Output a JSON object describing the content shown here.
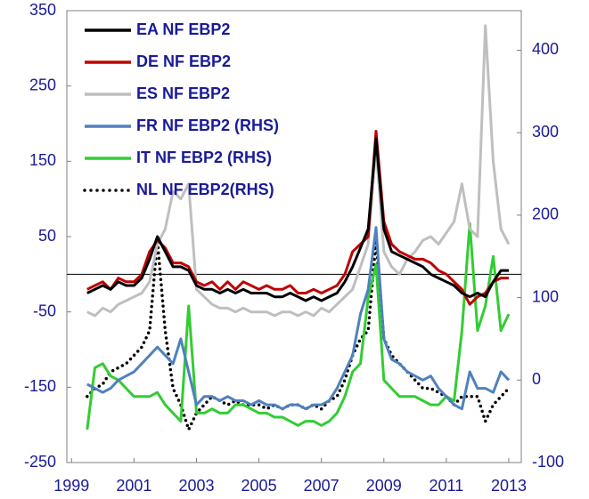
{
  "chart_data": {
    "type": "line",
    "x": [
      1999.5,
      1999.75,
      2000,
      2000.25,
      2000.5,
      2000.75,
      2001,
      2001.25,
      2001.5,
      2001.75,
      2002,
      2002.25,
      2002.5,
      2002.75,
      2003,
      2003.25,
      2003.5,
      2003.75,
      2004,
      2004.25,
      2004.5,
      2004.75,
      2005,
      2005.25,
      2005.5,
      2005.75,
      2006,
      2006.25,
      2006.5,
      2006.75,
      2007,
      2007.25,
      2007.5,
      2007.75,
      2008,
      2008.25,
      2008.5,
      2008.75,
      2009,
      2009.25,
      2009.5,
      2009.75,
      2010,
      2010.25,
      2010.5,
      2010.75,
      2011,
      2011.25,
      2011.5,
      2011.75,
      2012,
      2012.25,
      2012.5,
      2012.75,
      2013
    ],
    "series": [
      {
        "name": "EA NF EBP2",
        "color": "#000000",
        "style": "solid",
        "values": [
          -25,
          -20,
          -15,
          -20,
          -10,
          -15,
          -15,
          -5,
          20,
          50,
          30,
          10,
          10,
          5,
          -15,
          -20,
          -20,
          -25,
          -20,
          -25,
          -20,
          -25,
          -25,
          -25,
          -30,
          -30,
          -25,
          -30,
          -35,
          -30,
          -35,
          -30,
          -25,
          -10,
          10,
          35,
          60,
          180,
          60,
          30,
          25,
          20,
          15,
          10,
          0,
          -5,
          -10,
          -15,
          -25,
          -30,
          -25,
          -30,
          -10,
          5,
          5
        ]
      },
      {
        "name": "DE NF EBP2",
        "color": "#c00000",
        "style": "solid",
        "values": [
          -20,
          -15,
          -10,
          -20,
          -5,
          -10,
          -10,
          0,
          30,
          45,
          35,
          15,
          15,
          10,
          -10,
          -15,
          -10,
          -20,
          -10,
          -20,
          -10,
          -15,
          -20,
          -15,
          -20,
          -20,
          -15,
          -25,
          -25,
          -20,
          -25,
          -20,
          -15,
          0,
          30,
          40,
          50,
          190,
          70,
          40,
          30,
          25,
          20,
          20,
          15,
          5,
          0,
          -10,
          -20,
          -40,
          -30,
          -25,
          -10,
          -5,
          -5
        ]
      },
      {
        "name": "ES NF EBP2",
        "color": "#bfbfbf",
        "style": "solid",
        "values": [
          -50,
          -55,
          -45,
          -50,
          -40,
          -35,
          -30,
          -25,
          -10,
          40,
          60,
          110,
          100,
          120,
          -20,
          -30,
          -40,
          -45,
          -45,
          -50,
          -45,
          -50,
          -50,
          -50,
          -55,
          -50,
          -50,
          -55,
          -50,
          -55,
          -45,
          -50,
          -40,
          -30,
          -20,
          10,
          40,
          170,
          30,
          10,
          0,
          20,
          30,
          45,
          50,
          40,
          55,
          70,
          120,
          60,
          50,
          330,
          150,
          60,
          40
        ]
      },
      {
        "name": "FR NF EBP2 (RHS)",
        "color": "#4f81bd",
        "style": "solid",
        "axis": "y2",
        "values": [
          -5,
          -10,
          -15,
          -10,
          0,
          5,
          10,
          20,
          30,
          40,
          30,
          20,
          50,
          10,
          -30,
          -20,
          -20,
          -25,
          -20,
          -25,
          -25,
          -30,
          -25,
          -30,
          -30,
          -35,
          -30,
          -30,
          -35,
          -30,
          -30,
          -25,
          -10,
          10,
          30,
          80,
          110,
          185,
          50,
          25,
          20,
          10,
          5,
          0,
          5,
          -10,
          -20,
          -30,
          -35,
          10,
          -10,
          -10,
          -15,
          10,
          0
        ]
      },
      {
        "name": "IT NF EBP2 (RHS)",
        "color": "#33cc33",
        "style": "solid",
        "axis": "y2",
        "values": [
          -60,
          15,
          20,
          5,
          0,
          -10,
          -20,
          -20,
          -20,
          -15,
          -30,
          -40,
          -50,
          90,
          -40,
          -40,
          -35,
          -40,
          -40,
          -30,
          -30,
          -35,
          -40,
          -40,
          -45,
          -45,
          -50,
          -55,
          -50,
          -50,
          -55,
          -50,
          -40,
          -20,
          10,
          20,
          100,
          140,
          0,
          -10,
          -20,
          -20,
          -20,
          -25,
          -30,
          -30,
          -20,
          -25,
          60,
          190,
          60,
          90,
          150,
          60,
          80
        ]
      },
      {
        "name": "NL NF EBP2(RHS)",
        "color": "#000000",
        "style": "dotted",
        "axis": "y2",
        "values": [
          -20,
          -10,
          -5,
          10,
          15,
          20,
          30,
          40,
          60,
          170,
          60,
          -10,
          -30,
          -60,
          -40,
          -30,
          -20,
          -25,
          -30,
          -25,
          -30,
          -30,
          -30,
          -35,
          -30,
          -35,
          -30,
          -30,
          -35,
          -30,
          -35,
          -25,
          -20,
          0,
          30,
          50,
          60,
          170,
          50,
          30,
          20,
          10,
          0,
          -10,
          -10,
          -15,
          -20,
          -30,
          -20,
          -20,
          -20,
          -50,
          -30,
          -20,
          -10
        ]
      }
    ],
    "xlim": [
      1998.85,
      2013.4
    ],
    "xticks": [
      1999,
      2001,
      2003,
      2005,
      2007,
      2009,
      2011,
      2013
    ],
    "ylim": [
      -250,
      350
    ],
    "yticks": [
      -250,
      -150,
      -50,
      50,
      150,
      250,
      350
    ],
    "y2lim": [
      -100,
      448
    ],
    "y2ticks": [
      -100,
      0,
      100,
      200,
      300,
      400
    ],
    "legend": "upper left"
  }
}
